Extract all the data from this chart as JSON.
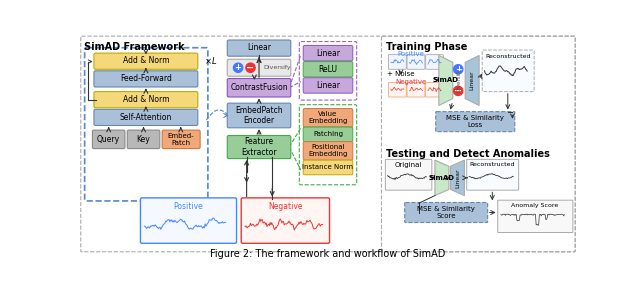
{
  "title": "Figure 2: The framework and workflow of SimAD",
  "bg_color": "#ffffff",
  "framework_title": "SimAD Framework",
  "training_title": "Training Phase",
  "testing_title": "Testing and Detect Anomalies",
  "colors": {
    "yellow": "#F5D87A",
    "blue_box": "#AABFD8",
    "gray_box": "#B8B8B8",
    "orange_box": "#F0A878",
    "purple_box": "#C8A8DC",
    "green_box": "#98CC98",
    "light_green_trap": "#C8E8C8",
    "light_blue_trap": "#A8C4D8",
    "white": "#FFFFFF",
    "dashed_blue": "#5588CC",
    "dashed_purple": "#9966BB",
    "dashed_green": "#44AA44",
    "positive_blue": "#4488FF",
    "negative_red": "#EE3333",
    "arrow_dark": "#333333"
  }
}
